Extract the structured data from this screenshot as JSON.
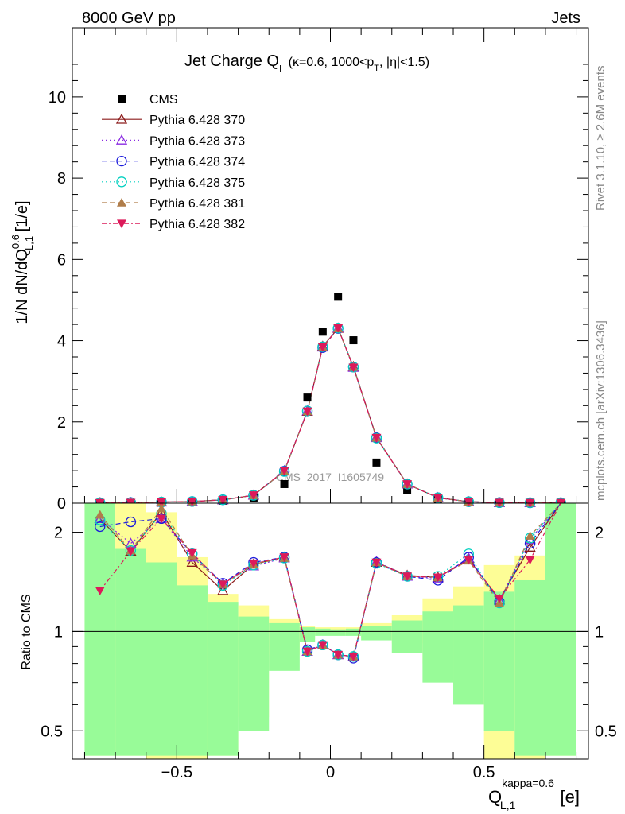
{
  "header": {
    "left": "8000 GeV pp",
    "right": "Jets"
  },
  "side_labels": {
    "rivet": "Rivet 3.1.10, ≥ 2.6M events",
    "mcplots": "mcplots.cern.ch [arXiv:1306.3436]"
  },
  "chart_data": [
    {
      "type": "scatter",
      "panel": "main",
      "title": "Jet Charge Q_L (κ=0.6, 1000<p_T, |η|<1.5)",
      "ylabel": "1/N dN/dQ^0.6_L,1 [1/e]",
      "watermark": "CMS_2017_I1605749",
      "xlim": [
        -0.84,
        0.84
      ],
      "ylim": [
        0,
        11.7
      ],
      "yticks": [
        0,
        2,
        4,
        6,
        8,
        10
      ],
      "x": [
        -0.75,
        -0.65,
        -0.55,
        -0.45,
        -0.35,
        -0.25,
        -0.15,
        -0.075,
        -0.025,
        0.025,
        0.075,
        0.15,
        0.25,
        0.35,
        0.45,
        0.55,
        0.65,
        0.75
      ],
      "legend_position": "top-left",
      "series": [
        {
          "name": "CMS",
          "marker": "square",
          "color": "#000000",
          "values": [
            0.005,
            0.008,
            0.012,
            0.025,
            0.06,
            0.12,
            0.47,
            2.6,
            4.22,
            5.08,
            4.01,
            1.0,
            0.32,
            0.09,
            0.022,
            0.011,
            0.006,
            0.004
          ]
        },
        {
          "name": "Pythia 6.428 370",
          "marker": "open-triangle-up",
          "color": "#8b1a1a",
          "dash": "solid",
          "values": [
            0.011,
            0.014,
            0.028,
            0.04,
            0.08,
            0.195,
            0.79,
            2.26,
            3.86,
            4.3,
            3.36,
            1.62,
            0.47,
            0.135,
            0.036,
            0.014,
            0.011,
            0.011
          ]
        },
        {
          "name": "Pythia 6.428 373",
          "marker": "open-triangle-up",
          "color": "#8a2be2",
          "dash": "dotted",
          "values": [
            0.011,
            0.015,
            0.027,
            0.041,
            0.083,
            0.196,
            0.8,
            2.27,
            3.84,
            4.31,
            3.34,
            1.61,
            0.47,
            0.135,
            0.036,
            0.014,
            0.01,
            0.01
          ]
        },
        {
          "name": "Pythia 6.428 374",
          "marker": "open-circle",
          "color": "#1a1adc",
          "dash": "dashed",
          "values": [
            0.01,
            0.017,
            0.027,
            0.042,
            0.084,
            0.195,
            0.79,
            2.27,
            3.83,
            4.3,
            3.35,
            1.61,
            0.47,
            0.133,
            0.036,
            0.014,
            0.01,
            0.01
          ]
        },
        {
          "name": "Pythia 6.428 375",
          "marker": "open-circle",
          "color": "#00d0c0",
          "dash": "dotted",
          "values": [
            0.011,
            0.014,
            0.028,
            0.042,
            0.084,
            0.193,
            0.78,
            2.27,
            3.85,
            4.31,
            3.35,
            1.6,
            0.47,
            0.135,
            0.037,
            0.014,
            0.011,
            0.011
          ]
        },
        {
          "name": "Pythia 6.428 381",
          "marker": "filled-triangle-up",
          "color": "#b07d4a",
          "dash": "dashed",
          "values": [
            0.011,
            0.014,
            0.029,
            0.042,
            0.084,
            0.195,
            0.79,
            2.26,
            3.84,
            4.3,
            3.35,
            1.61,
            0.47,
            0.134,
            0.036,
            0.014,
            0.011,
            0.011
          ]
        },
        {
          "name": "Pythia 6.428 382",
          "marker": "filled-triangle-down",
          "color": "#dc1a5a",
          "dash": "dashdot",
          "values": [
            0.007,
            0.014,
            0.027,
            0.043,
            0.083,
            0.196,
            0.8,
            2.26,
            3.84,
            4.31,
            3.34,
            1.61,
            0.47,
            0.134,
            0.036,
            0.014,
            0.01,
            0.01
          ]
        }
      ]
    },
    {
      "type": "scatter",
      "panel": "ratio",
      "ylabel": "Ratio to CMS",
      "xlabel": "Q^kappa=0.6_L,1 [e]",
      "xlim": [
        -0.84,
        0.84
      ],
      "ylim": [
        0.41,
        2.45
      ],
      "yscale": "log",
      "yticks": [
        0.5,
        1,
        2
      ],
      "xticks": [
        -0.5,
        0,
        0.5
      ],
      "reference_line": 1,
      "x_edges": [
        -0.8,
        -0.7,
        -0.6,
        -0.5,
        -0.4,
        -0.3,
        -0.2,
        -0.1,
        -0.05,
        0,
        0.05,
        0.1,
        0.2,
        0.3,
        0.4,
        0.5,
        0.6,
        0.7,
        0.8
      ],
      "band_green": {
        "lo": [
          0.42,
          0.42,
          0.42,
          0.42,
          0.42,
          0.5,
          0.76,
          0.93,
          0.97,
          0.97,
          0.97,
          0.94,
          0.86,
          0.7,
          0.6,
          0.5,
          0.42,
          0.42
        ],
        "hi": [
          2.6,
          1.78,
          1.62,
          1.38,
          1.23,
          1.11,
          1.06,
          1.03,
          1.02,
          1.015,
          1.02,
          1.04,
          1.08,
          1.15,
          1.2,
          1.32,
          1.43,
          2.6
        ]
      },
      "band_yellow": {
        "lo": [
          0.42,
          0.42,
          0.36,
          0.38,
          0.42,
          0.55,
          0.85,
          0.95,
          0.98,
          0.98,
          0.98,
          0.96,
          0.92,
          0.8,
          0.68,
          0.38,
          0.36,
          0.42
        ],
        "hi": [
          2.6,
          2.6,
          2.3,
          1.68,
          1.3,
          1.2,
          1.09,
          1.04,
          1.03,
          1.03,
          1.03,
          1.06,
          1.12,
          1.26,
          1.37,
          1.59,
          1.7,
          2.6
        ]
      },
      "x": [
        -0.75,
        -0.65,
        -0.55,
        -0.45,
        -0.35,
        -0.25,
        -0.15,
        -0.075,
        -0.025,
        0.025,
        0.075,
        0.15,
        0.25,
        0.35,
        0.45,
        0.55,
        0.65,
        0.75
      ],
      "series": [
        {
          "name": "Pythia 6.428 370",
          "values": [
            2.2,
            1.75,
            2.3,
            1.62,
            1.33,
            1.6,
            1.68,
            0.87,
            0.91,
            0.85,
            0.84,
            1.62,
            1.48,
            1.46,
            1.66,
            1.25,
            1.8,
            2.6
          ]
        },
        {
          "name": "Pythia 6.428 373",
          "values": [
            2.2,
            1.85,
            2.2,
            1.68,
            1.4,
            1.58,
            1.67,
            0.87,
            0.91,
            0.85,
            0.84,
            1.63,
            1.47,
            1.45,
            1.67,
            1.24,
            1.9,
            2.6
          ]
        },
        {
          "name": "Pythia 6.428 374",
          "values": [
            2.08,
            2.15,
            2.2,
            1.72,
            1.4,
            1.62,
            1.68,
            0.88,
            0.91,
            0.85,
            0.83,
            1.62,
            1.47,
            1.43,
            1.68,
            1.23,
            1.85,
            2.6
          ]
        },
        {
          "name": "Pythia 6.428 375",
          "values": [
            2.18,
            1.76,
            2.28,
            1.72,
            1.38,
            1.59,
            1.67,
            0.87,
            0.91,
            0.85,
            0.84,
            1.61,
            1.47,
            1.47,
            1.72,
            1.22,
            1.92,
            2.6
          ]
        },
        {
          "name": "Pythia 6.428 381",
          "values": [
            2.26,
            1.76,
            2.36,
            1.7,
            1.39,
            1.6,
            1.67,
            0.87,
            0.91,
            0.85,
            0.84,
            1.62,
            1.47,
            1.46,
            1.64,
            1.22,
            1.95,
            2.6
          ]
        },
        {
          "name": "Pythia 6.428 382",
          "values": [
            1.33,
            1.75,
            2.2,
            1.73,
            1.39,
            1.61,
            1.68,
            0.87,
            0.91,
            0.85,
            0.84,
            1.62,
            1.47,
            1.46,
            1.65,
            1.26,
            1.65,
            2.6
          ]
        }
      ]
    }
  ]
}
